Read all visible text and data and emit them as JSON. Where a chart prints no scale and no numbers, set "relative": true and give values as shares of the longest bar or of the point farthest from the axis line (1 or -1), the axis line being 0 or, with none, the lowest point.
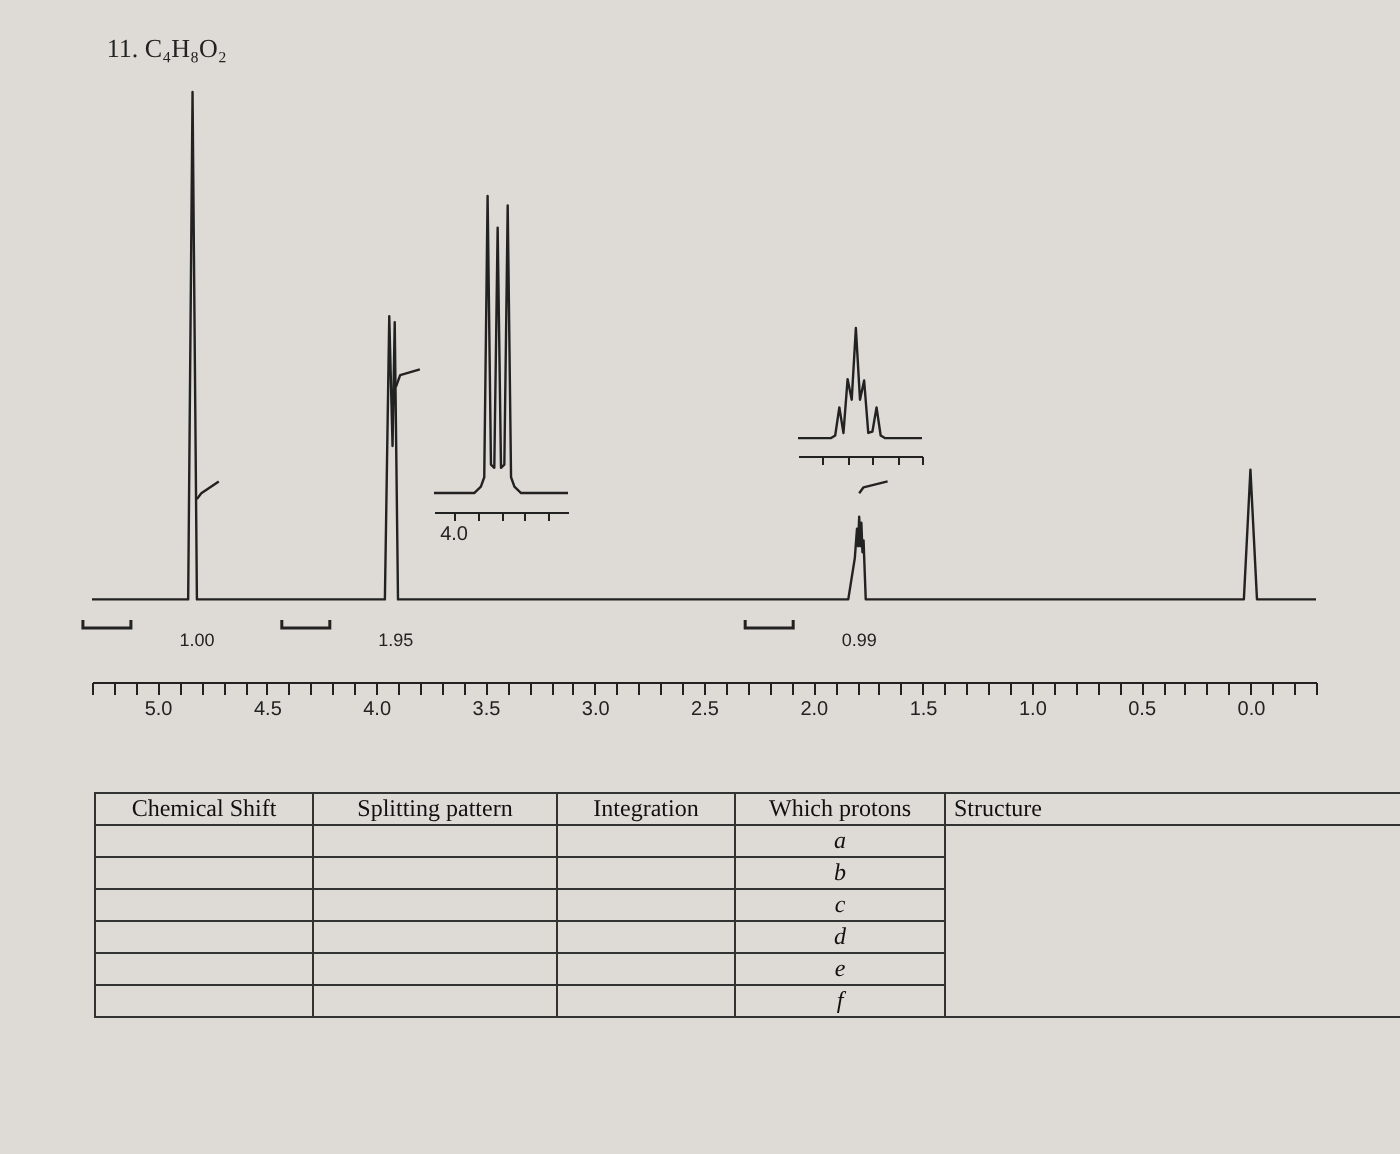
{
  "chart_data": [
    {
      "type": "line",
      "title": "11. C₄H₈O₂",
      "relative": true,
      "xlim": [
        5.3,
        -0.3
      ],
      "xticks": [
        {
          "value": 5.3,
          "label": null
        },
        {
          "value": 5.2,
          "label": null
        },
        {
          "value": 5.1,
          "label": null
        },
        {
          "value": 5.0,
          "label": "5.0"
        },
        {
          "value": 4.9,
          "label": null
        },
        {
          "value": 4.8,
          "label": null
        },
        {
          "value": 4.7,
          "label": null
        },
        {
          "value": 4.6,
          "label": null
        },
        {
          "value": 4.5,
          "label": "4.5"
        },
        {
          "value": 4.4,
          "label": null
        },
        {
          "value": 4.3,
          "label": null
        },
        {
          "value": 4.2,
          "label": null
        },
        {
          "value": 4.1,
          "label": null
        },
        {
          "value": 4.0,
          "label": "4.0"
        },
        {
          "value": 3.9,
          "label": null
        },
        {
          "value": 3.8,
          "label": null
        },
        {
          "value": 3.7,
          "label": null
        },
        {
          "value": 3.6,
          "label": null
        },
        {
          "value": 3.5,
          "label": "3.5"
        },
        {
          "value": 3.4,
          "label": null
        },
        {
          "value": 3.3,
          "label": null
        },
        {
          "value": 3.2,
          "label": null
        },
        {
          "value": 3.1,
          "label": null
        },
        {
          "value": 3.0,
          "label": "3.0"
        },
        {
          "value": 2.9,
          "label": null
        },
        {
          "value": 2.8,
          "label": null
        },
        {
          "value": 2.7,
          "label": null
        },
        {
          "value": 2.6,
          "label": null
        },
        {
          "value": 2.5,
          "label": "2.5"
        },
        {
          "value": 2.4,
          "label": null
        },
        {
          "value": 2.3,
          "label": null
        },
        {
          "value": 2.2,
          "label": null
        },
        {
          "value": 2.1,
          "label": null
        },
        {
          "value": 2.0,
          "label": "2.0"
        },
        {
          "value": 1.9,
          "label": null
        },
        {
          "value": 1.8,
          "label": null
        },
        {
          "value": 1.7,
          "label": null
        },
        {
          "value": 1.6,
          "label": null
        },
        {
          "value": 1.5,
          "label": "1.5"
        },
        {
          "value": 1.4,
          "label": null
        },
        {
          "value": 1.3,
          "label": null
        },
        {
          "value": 1.2,
          "label": null
        },
        {
          "value": 1.1,
          "label": null
        },
        {
          "value": 1.0,
          "label": "1.0"
        },
        {
          "value": 0.9,
          "label": null
        },
        {
          "value": 0.8,
          "label": null
        },
        {
          "value": 0.7,
          "label": null
        },
        {
          "value": 0.6,
          "label": null
        },
        {
          "value": 0.5,
          "label": "0.5"
        },
        {
          "value": 0.4,
          "label": null
        },
        {
          "value": 0.3,
          "label": null
        },
        {
          "value": 0.2,
          "label": null
        },
        {
          "value": 0.1,
          "label": null
        },
        {
          "value": 0.0,
          "label": "0.0"
        },
        {
          "value": -0.1,
          "label": null
        },
        {
          "value": -0.2,
          "label": null
        },
        {
          "value": -0.3,
          "label": null
        }
      ],
      "grid": false,
      "marker": "none",
      "tick_labels": "x",
      "series": [
        {
          "type": "line",
          "color": "#222222",
          "x": [
            5.3,
            4.86,
            4.84,
            4.82,
            4.8,
            3.96,
            3.94,
            3.925,
            3.915,
            3.9,
            3.88,
            1.84,
            1.81,
            1.8,
            1.795,
            1.79,
            1.785,
            1.78,
            1.775,
            1.77,
            1.76,
            1.73,
            0.03,
            0.0,
            -0.03,
            -0.3
          ],
          "values": [
            0.14,
            0.14,
            1,
            0.14,
            0.14,
            0.14,
            0.62,
            0.4,
            0.61,
            0.14,
            0.14,
            0.14,
            0.21,
            0.26,
            0.23,
            0.28,
            0.23,
            0.27,
            0.22,
            0.24,
            0.14,
            0.14,
            0.14,
            0.36,
            0.14,
            0.14
          ]
        },
        {
          "type": "line",
          "color": "#222222",
          "x": [
            4.82,
            4.8,
            4.72
          ],
          "values": [
            0.31,
            0.32,
            0.34
          ]
        },
        {
          "type": "line",
          "color": "#222222",
          "x": [
            3.91,
            3.89,
            3.8
          ],
          "values": [
            0.5,
            0.52,
            0.53
          ]
        },
        {
          "type": "line",
          "color": "#222222",
          "x": [
            1.79,
            1.77,
            1.66
          ],
          "values": [
            0.32,
            0.33,
            0.34
          ]
        }
      ],
      "annotations": [
        "1.00",
        "1.95",
        "0.99"
      ]
    },
    {
      "type": "line",
      "relative": true,
      "annotations": [
        "4.0"
      ],
      "categories": [
        null,
        null,
        null,
        null,
        null,
        null,
        null,
        null,
        null,
        null,
        null,
        null,
        null,
        null,
        null,
        null,
        null,
        null,
        null,
        null,
        null,
        null,
        null,
        null,
        null,
        null,
        null,
        null,
        null,
        null,
        null,
        null,
        null,
        null,
        null,
        null,
        null,
        null,
        null,
        null,
        null
      ],
      "series": [
        {
          "color": "#222222",
          "values": [
            0.06,
            0.06,
            0.06,
            0.06,
            0.06,
            0.06,
            0.06,
            0.06,
            0.06,
            0.06,
            0.06,
            0.06,
            0.06,
            0.07,
            0.08,
            0.11,
            1,
            0.15,
            0.14,
            0.9,
            0.14,
            0.15,
            0.97,
            0.11,
            0.08,
            0.07,
            0.06,
            0.06,
            0.06,
            0.06,
            0.06,
            0.06,
            0.06,
            0.06,
            0.06,
            0.06,
            0.06,
            0.06,
            0.06,
            0.06,
            0.06
          ]
        }
      ]
    },
    {
      "type": "line",
      "relative": true,
      "categories": [
        null,
        null,
        null,
        null,
        null,
        null,
        null,
        null,
        null,
        null,
        null,
        null,
        null,
        null,
        null,
        null,
        null,
        null,
        null,
        null,
        null,
        null,
        null,
        null,
        null,
        null,
        null,
        null,
        null,
        null,
        null
      ],
      "series": [
        {
          "color": "#222222",
          "values": [
            0.14,
            0.14,
            0.14,
            0.14,
            0.14,
            0.14,
            0.14,
            0.14,
            0.14,
            0.16,
            0.38,
            0.18,
            0.6,
            0.44,
            1,
            0.44,
            0.59,
            0.18,
            0.19,
            0.38,
            0.16,
            0.14,
            0.14,
            0.14,
            0.14,
            0.14,
            0.14,
            0.14,
            0.14,
            0.14,
            0.14
          ]
        }
      ]
    },
    {
      "type": "other",
      "categories": [
        "Chemical Shift",
        "Splitting pattern",
        "Integration",
        "Which protons",
        "Structure"
      ],
      "annotations": [
        "a",
        "b",
        "c",
        "d",
        "e",
        "f"
      ]
    }
  ]
}
